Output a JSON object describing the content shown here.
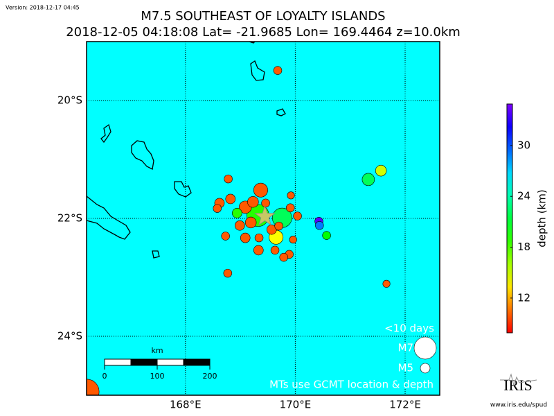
{
  "chart_data": {
    "type": "scatter",
    "version": "Version: 2018-12-17 04:45",
    "title": "M7.5 SOUTHEAST OF LOYALTY ISLANDS",
    "subtitle": "2018-12-05 04:18:08 Lat= -21.9685 Lon= 169.4464 z=10.0km",
    "xlim": [
      166.2,
      172.63
    ],
    "ylim": [
      -25,
      -19
    ],
    "xticks": [
      {
        "value": 168,
        "label": "168°E"
      },
      {
        "value": 170,
        "label": "170°E"
      },
      {
        "value": 172,
        "label": "172°E"
      }
    ],
    "yticks": [
      {
        "value": -20,
        "label": "20°S"
      },
      {
        "value": -22,
        "label": "22°S"
      },
      {
        "value": -24,
        "label": "24°S"
      }
    ],
    "grid": true,
    "background": "#00ffff",
    "mainshock": {
      "x": 169.4464,
      "y": -21.9685,
      "color": "#c8c864"
    },
    "x": [
      169.68,
      168.78,
      169.37,
      168.82,
      168.62,
      168.58,
      169.09,
      169.23,
      169.46,
      169.92,
      169.91,
      170.04,
      168.94,
      169.76,
      169.32,
      168.99,
      169.19,
      168.73,
      169.09,
      169.34,
      169.65,
      169.57,
      169.7,
      169.96,
      169.33,
      169.63,
      169.89,
      169.79,
      168.77,
      170.43,
      170.44,
      170.57,
      171.56,
      171.33,
      171.66,
      166.2
    ],
    "values": [
      -19.49,
      -21.33,
      -21.52,
      -21.67,
      -21.74,
      -21.83,
      -21.81,
      -21.72,
      -21.74,
      -21.61,
      -21.82,
      -21.96,
      -21.91,
      -21.99,
      -21.95,
      -22.12,
      -22.07,
      -22.3,
      -22.33,
      -22.33,
      -22.32,
      -22.19,
      -22.13,
      -22.36,
      -22.54,
      -22.54,
      -22.61,
      -22.66,
      -22.93,
      -22.05,
      -22.12,
      -22.29,
      -21.19,
      -21.34,
      -23.11,
      -24.94
    ],
    "magnitudes": [
      4.6,
      4.6,
      5.9,
      5.0,
      5.0,
      4.6,
      5.6,
      5.3,
      4.6,
      4.3,
      4.6,
      4.6,
      5.0,
      6.7,
      7.0,
      5.0,
      5.3,
      4.6,
      5.0,
      4.6,
      5.9,
      5.0,
      4.6,
      4.3,
      5.0,
      4.6,
      4.6,
      4.6,
      4.6,
      4.6,
      4.6,
      4.6,
      5.3,
      5.6,
      4.3,
      7.3
    ],
    "depths": [
      10,
      10,
      10,
      10,
      10,
      10,
      10,
      10,
      10,
      10,
      10,
      10,
      19,
      22,
      19,
      10,
      10,
      10,
      10,
      10,
      14,
      10,
      10,
      10,
      10,
      10,
      10,
      10,
      10,
      34,
      29,
      20,
      15,
      22,
      10,
      10
    ],
    "clim": [
      7.9,
      34.9
    ],
    "cticks": [
      12,
      18,
      24,
      30
    ],
    "clabel": "depth (km)",
    "legend": {
      "title": "<10 days",
      "sizes": [
        {
          "value": 7,
          "label": "M7"
        },
        {
          "value": 5,
          "label": "M5"
        }
      ],
      "note": "MTs use GCMT location & depth"
    },
    "scale_bar": {
      "label": "km",
      "ticks": [
        0,
        100,
        200
      ]
    },
    "logo": "IRIS",
    "url": "www.iris.edu/spud"
  }
}
